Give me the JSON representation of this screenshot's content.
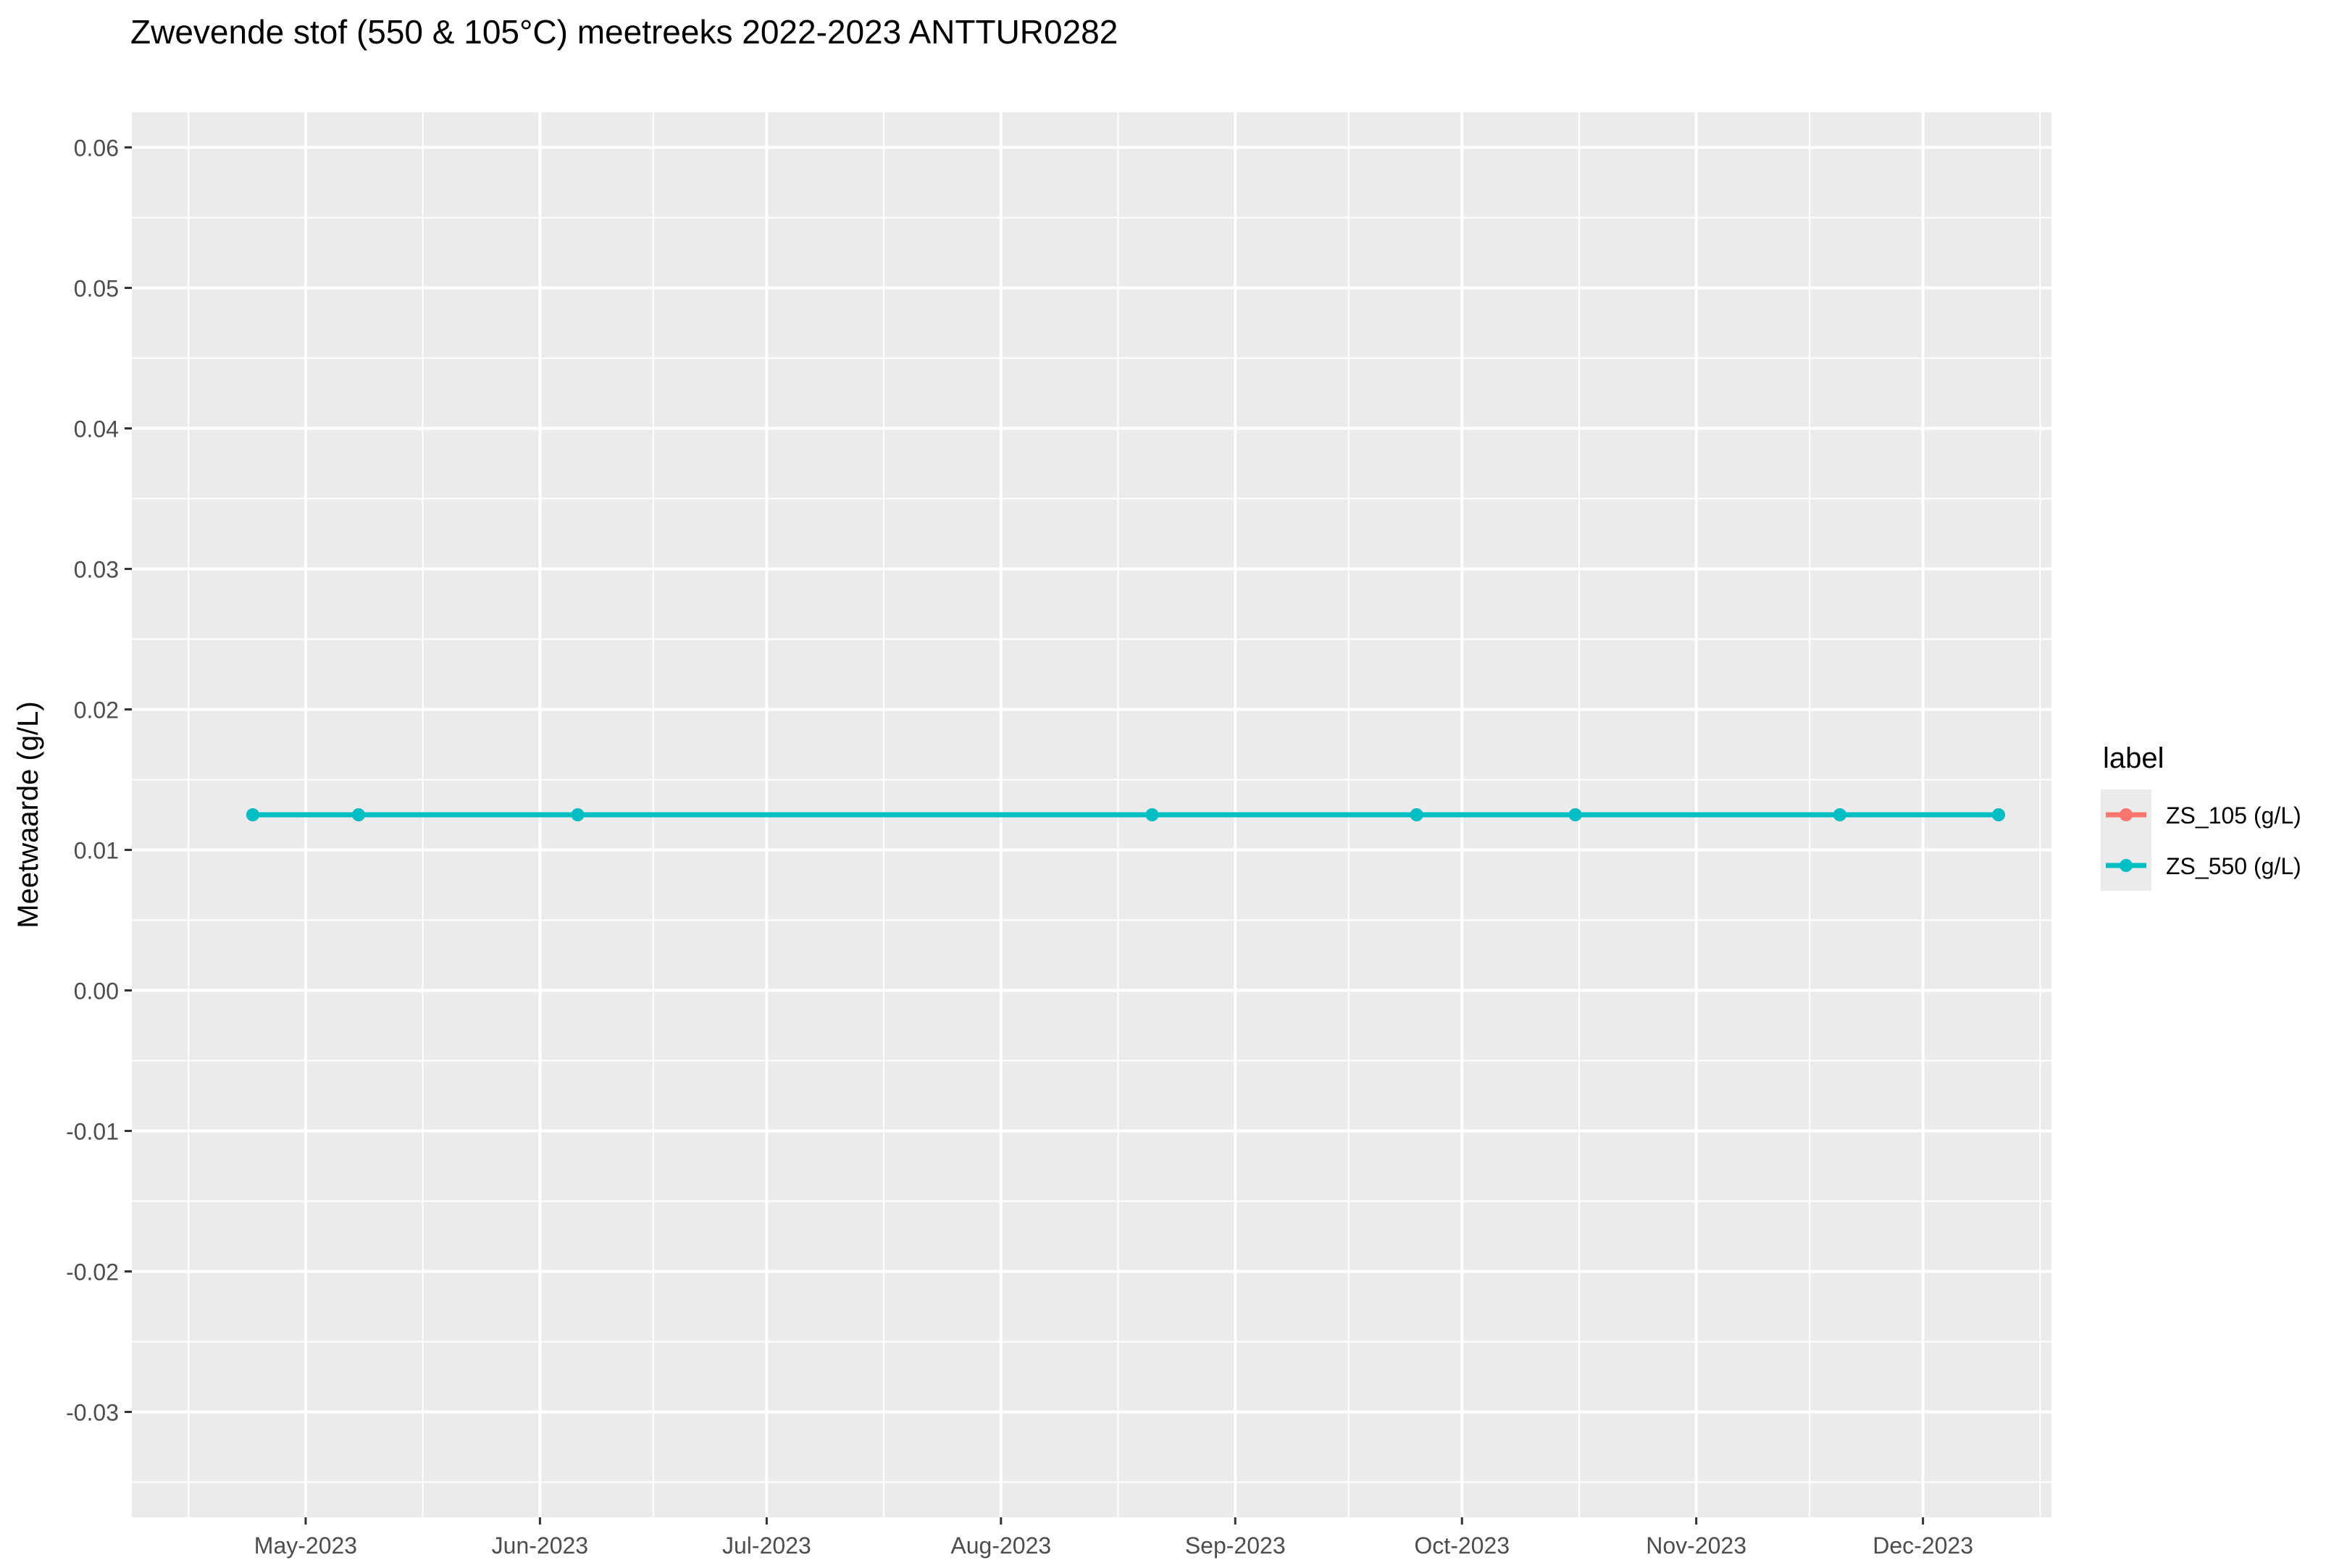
{
  "chart_data": {
    "type": "line",
    "title": "Zwevende stof (550 & 105°C) meetreeks 2022-2023 ANTTUR0282",
    "xlabel": "",
    "ylabel": "Meetwaarde (g/L)",
    "x_ticks": [
      "2023-05-01",
      "2023-06-01",
      "2023-07-01",
      "2023-08-01",
      "2023-09-01",
      "2023-10-01",
      "2023-11-01",
      "2023-12-01"
    ],
    "x_tick_labels": [
      "May-2023",
      "Jun-2023",
      "Jul-2023",
      "Aug-2023",
      "Sep-2023",
      "Oct-2023",
      "Nov-2023",
      "Dec-2023"
    ],
    "xlim": [
      "2023-04-08",
      "2023-12-18"
    ],
    "ylim": [
      -0.0375,
      0.0625
    ],
    "y_ticks": [
      -0.03,
      -0.02,
      -0.01,
      0.0,
      0.01,
      0.02,
      0.03,
      0.04,
      0.05,
      0.06
    ],
    "y_tick_labels": [
      "-0.03",
      "-0.02",
      "-0.01",
      "0.00",
      "0.01",
      "0.02",
      "0.03",
      "0.04",
      "0.05",
      "0.06"
    ],
    "grid": true,
    "legend": {
      "title": "label",
      "position": "right"
    },
    "series": [
      {
        "name": "ZS_105 (g/L)",
        "color": "#F8766D",
        "x": [
          "2023-04-24",
          "2023-05-08",
          "2023-06-06",
          "2023-08-21",
          "2023-09-25",
          "2023-10-16",
          "2023-11-20",
          "2023-12-11"
        ],
        "y": [
          0.0125,
          0.0125,
          0.0125,
          0.0125,
          0.0125,
          0.0125,
          0.0125,
          0.0125
        ]
      },
      {
        "name": "ZS_550 (g/L)",
        "color": "#00BFC4",
        "x": [
          "2023-04-24",
          "2023-05-08",
          "2023-06-06",
          "2023-08-21",
          "2023-09-25",
          "2023-10-16",
          "2023-11-20",
          "2023-12-11"
        ],
        "y": [
          0.0125,
          0.0125,
          0.0125,
          0.0125,
          0.0125,
          0.0125,
          0.0125,
          0.0125
        ]
      }
    ]
  }
}
